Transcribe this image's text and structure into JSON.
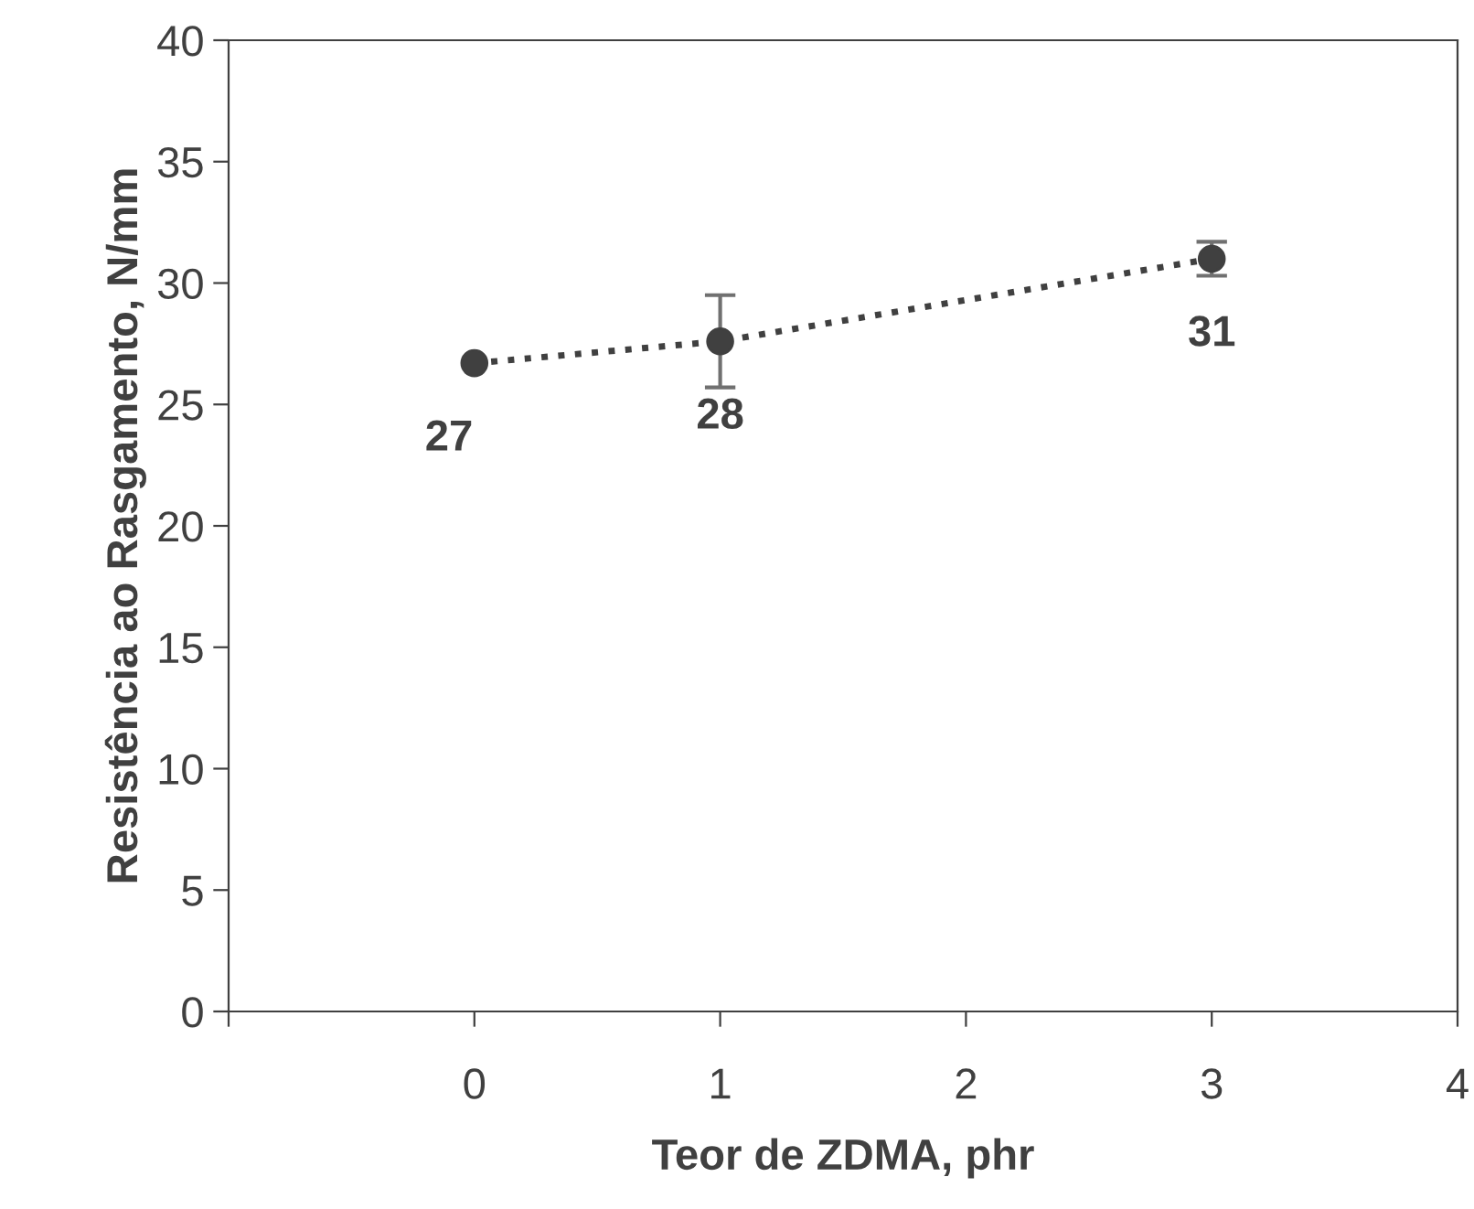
{
  "chart_data": {
    "type": "line",
    "xlabel": "Teor de ZDMA, phr",
    "ylabel": "Resistência ao Rasgamento, N/mm",
    "x": [
      0,
      1,
      3
    ],
    "series": [
      {
        "color": "#404040",
        "values": [
          26.7,
          27.6,
          31.0
        ],
        "errors": [
          null,
          1.9,
          0.7
        ],
        "value_labels": [
          "27",
          "28",
          "31"
        ]
      }
    ],
    "xlim": [
      -1,
      4
    ],
    "xticks": [
      {
        "value": -1,
        "label": null
      },
      0,
      1,
      2,
      3,
      4
    ],
    "ylim": [
      0,
      40
    ],
    "yticks": [
      0,
      5,
      10,
      15,
      20,
      25,
      30,
      35,
      40
    ],
    "marker": "circle",
    "line_style": "dotted",
    "grid": false,
    "legend": false
  }
}
